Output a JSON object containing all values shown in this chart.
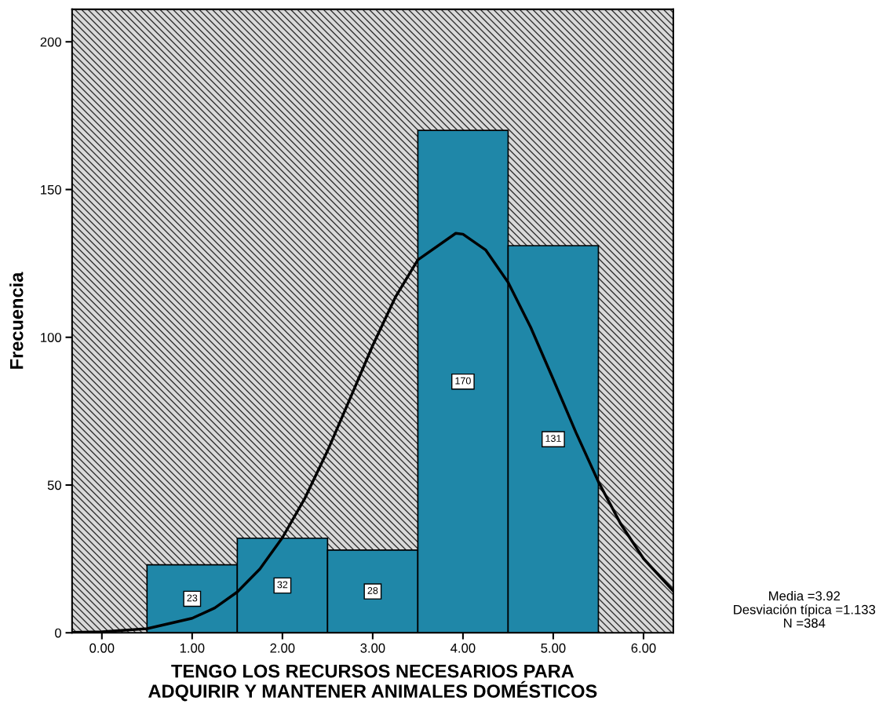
{
  "chart_data": {
    "type": "histogram",
    "xlabel": "TENGO LOS RECURSOS NECESARIOS PARA\nADQUIRIR Y MANTENER ANIMALES DOMÉSTICOS",
    "ylabel": "Frecuencia",
    "bins": [
      0.5,
      1.5,
      2.5,
      3.5,
      4.5,
      5.5
    ],
    "color": "#1f87a8",
    "values": [
      23,
      32,
      28,
      170,
      131
    ],
    "series": [
      {
        "type": "line",
        "color": "#000000",
        "x": [
          -0.33,
          0,
          0.5,
          1.0,
          1.25,
          1.5,
          1.75,
          2.0,
          2.25,
          2.5,
          2.75,
          3.0,
          3.25,
          3.5,
          3.92,
          4.0,
          4.25,
          4.5,
          4.75,
          5.0,
          5.25,
          5.5,
          5.75,
          6.0,
          6.33
        ],
        "values": [
          0.1,
          0.3,
          1.4,
          4.9,
          8.4,
          13.8,
          21.6,
          32.2,
          45.6,
          61.6,
          79.3,
          97.2,
          113.5,
          126.2,
          135.2,
          134.9,
          129.6,
          118.6,
          103.4,
          85.8,
          67.9,
          51.1,
          36.7,
          25.1,
          14.1
        ]
      }
    ],
    "value_labels": [
      "23",
      "32",
      "28",
      "170",
      "131"
    ],
    "xlim": [
      -0.33,
      6.33
    ],
    "xticks": [
      {
        "value": 0,
        "label": "0.00"
      },
      {
        "value": 1,
        "label": "1.00"
      },
      {
        "value": 2,
        "label": "2.00"
      },
      {
        "value": 3,
        "label": "3.00"
      },
      {
        "value": 4,
        "label": "4.00"
      },
      {
        "value": 5,
        "label": "5.00"
      },
      {
        "value": 6,
        "label": "6.00"
      }
    ],
    "ylim": [
      0,
      211
    ],
    "yticks": [
      0,
      50,
      100,
      150,
      200
    ],
    "grid": false,
    "annotations": [
      "Media =3.92",
      "Desviación típica =1.133",
      "N =384"
    ]
  }
}
